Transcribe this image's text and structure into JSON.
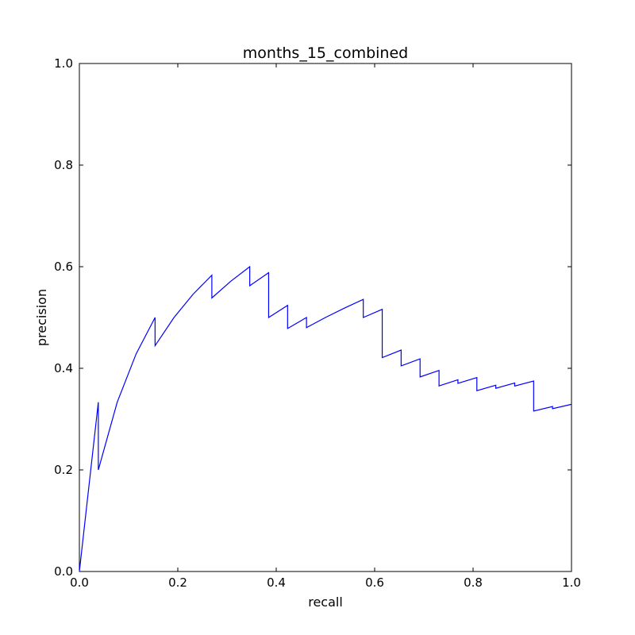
{
  "chart_data": {
    "type": "line",
    "title": "months_15_combined",
    "xlabel": "recall",
    "ylabel": "precision",
    "xlim": [
      0.0,
      1.0
    ],
    "ylim": [
      0.0,
      1.0
    ],
    "x_ticks": [
      "0.0",
      "0.2",
      "0.4",
      "0.6",
      "0.8",
      "1.0"
    ],
    "y_ticks": [
      "0.0",
      "0.2",
      "0.4",
      "0.6",
      "0.8",
      "1.0"
    ],
    "grid": false,
    "series": [
      {
        "color": "#0000ff",
        "x": [
          0.0,
          0.0385,
          0.0385,
          0.0769,
          0.1154,
          0.1538,
          0.1538,
          0.1923,
          0.2308,
          0.2692,
          0.2692,
          0.3077,
          0.3462,
          0.3462,
          0.3846,
          0.3846,
          0.4231,
          0.4231,
          0.4615,
          0.4615,
          0.5,
          0.5385,
          0.5769,
          0.5769,
          0.6154,
          0.6154,
          0.6538,
          0.6538,
          0.6923,
          0.6923,
          0.7308,
          0.7308,
          0.7692,
          0.7692,
          0.8077,
          0.8077,
          0.8462,
          0.8462,
          0.8846,
          0.8846,
          0.9231,
          0.9231,
          0.9615,
          0.9615,
          1.0
        ],
        "y": [
          0.0,
          0.3333,
          0.2,
          0.3333,
          0.4286,
          0.5,
          0.4444,
          0.5,
          0.5455,
          0.5833,
          0.5385,
          0.5714,
          0.6,
          0.5625,
          0.5882,
          0.5,
          0.5238,
          0.4783,
          0.5,
          0.48,
          0.5,
          0.5185,
          0.5357,
          0.5,
          0.5161,
          0.4211,
          0.4359,
          0.4048,
          0.4186,
          0.383,
          0.3958,
          0.3654,
          0.3774,
          0.3704,
          0.3818,
          0.3559,
          0.3667,
          0.3607,
          0.371,
          0.3651,
          0.375,
          0.3158,
          0.3247,
          0.3205,
          0.3291
        ]
      }
    ]
  }
}
